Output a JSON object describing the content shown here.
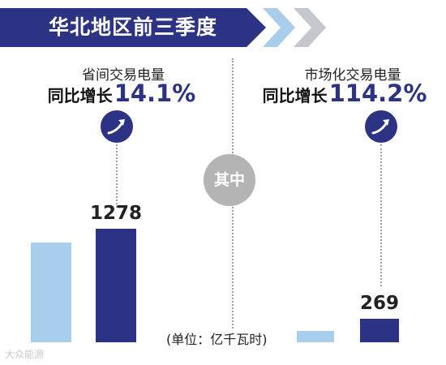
{
  "banner": {
    "title": "华北地区前三季度"
  },
  "center_label": "其中",
  "unit": "(单位：亿千瓦时)",
  "watermark": "大众能源",
  "colors": {
    "dark_bar": "#2d3384",
    "light_bar": "#a9cdec",
    "banner": "#2d3384",
    "chevron": "#a9cdec"
  },
  "icons": [
    "trend-up-arrow-icon",
    "chevron-right-icon"
  ],
  "chart_data": [
    {
      "type": "bar",
      "title": "省间交易电量",
      "subtitle": "同比增长",
      "growth": "14.1%",
      "values": [
        1120,
        1278
      ],
      "data_labels": [
        "",
        "1278"
      ],
      "colors": [
        "#a9cdec",
        "#2d3384"
      ],
      "ylim": [
        0,
        1278
      ]
    },
    {
      "type": "bar",
      "title": "市场化交易电量",
      "subtitle": "同比增长",
      "growth": "114.2%",
      "values": [
        126,
        269
      ],
      "data_labels": [
        "",
        "269"
      ],
      "colors": [
        "#a9cdec",
        "#2d3384"
      ],
      "ylim": [
        0,
        1278
      ]
    }
  ]
}
